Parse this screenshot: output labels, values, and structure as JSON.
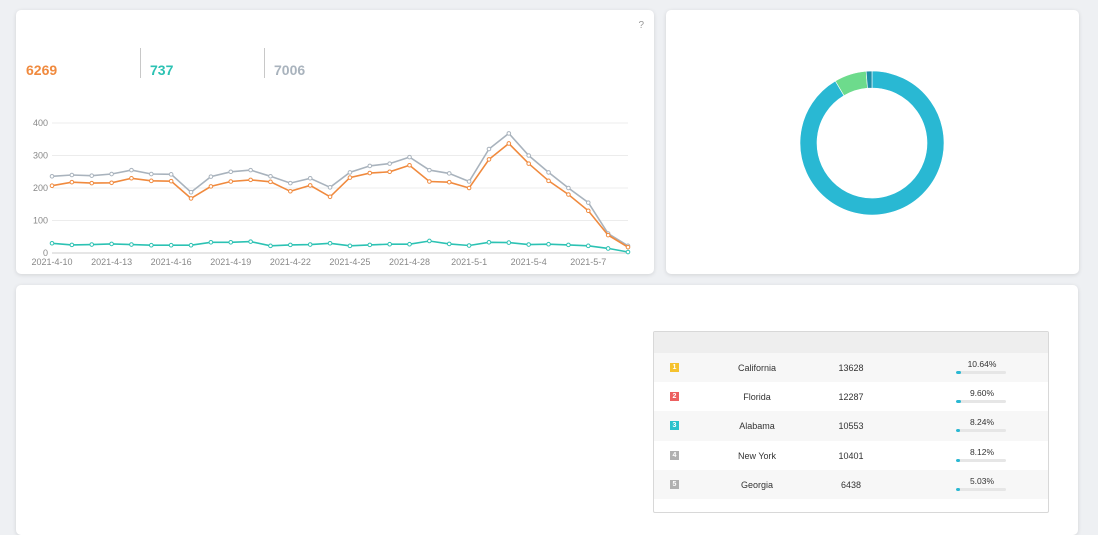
{
  "trend_panel": {
    "corner_mark": "?",
    "stats": [
      {
        "value": "6269",
        "color": "#f08a3e"
      },
      {
        "value": "737",
        "color": "#2cc2b3"
      },
      {
        "value": "7006",
        "color": "#a9b3bd"
      }
    ]
  },
  "chart_data": [
    {
      "type": "line",
      "x": [
        "2021-4-10",
        "2021-4-11",
        "2021-4-12",
        "2021-4-13",
        "2021-4-14",
        "2021-4-15",
        "2021-4-16",
        "2021-4-17",
        "2021-4-18",
        "2021-4-19",
        "2021-4-20",
        "2021-4-21",
        "2021-4-22",
        "2021-4-23",
        "2021-4-24",
        "2021-4-25",
        "2021-4-26",
        "2021-4-27",
        "2021-4-28",
        "2021-4-29",
        "2021-4-30",
        "2021-5-1",
        "2021-5-2",
        "2021-5-3",
        "2021-5-4",
        "2021-5-5",
        "2021-5-6",
        "2021-5-7",
        "2021-5-8",
        "2021-5-9"
      ],
      "xticks": [
        "2021-4-10",
        "2021-4-13",
        "2021-4-16",
        "2021-4-19",
        "2021-4-22",
        "2021-4-25",
        "2021-4-28",
        "2021-5-1",
        "2021-5-4",
        "2021-5-7"
      ],
      "yticks": [
        0,
        100,
        200,
        300,
        400
      ],
      "ylim": [
        0,
        400
      ],
      "grid": true,
      "series": [
        {
          "color": "#a9b3bd",
          "values": [
            236,
            240,
            238,
            243,
            255,
            243,
            242,
            187,
            235,
            250,
            255,
            236,
            215,
            230,
            202,
            248,
            268,
            275,
            295,
            255,
            245,
            220,
            320,
            368,
            300,
            248,
            200,
            155,
            60,
            22
          ]
        },
        {
          "color": "#f08a3e",
          "values": [
            207,
            218,
            215,
            216,
            230,
            222,
            221,
            168,
            205,
            220,
            225,
            219,
            190,
            208,
            173,
            232,
            246,
            250,
            270,
            220,
            218,
            200,
            288,
            337,
            275,
            222,
            180,
            130,
            55,
            18
          ]
        },
        {
          "color": "#2cc2b3",
          "values": [
            30,
            25,
            26,
            28,
            26,
            24,
            24,
            24,
            33,
            33,
            35,
            22,
            25,
            26,
            30,
            22,
            25,
            27,
            27,
            37,
            28,
            23,
            33,
            32,
            26,
            27,
            25,
            22,
            14,
            3
          ]
        }
      ]
    },
    {
      "type": "pie",
      "donut": true,
      "slices": [
        {
          "value": 91.5,
          "color": "#29b8d3"
        },
        {
          "value": 7.2,
          "color": "#6ddb8c"
        },
        {
          "value": 1.3,
          "color": "#1e8fa8"
        }
      ]
    }
  ],
  "ranking": {
    "rows": [
      {
        "rank": "1",
        "badge_color": "#f5c22e",
        "name": "California",
        "value": "13628",
        "percent": "10.64%",
        "fraction": 0.1064
      },
      {
        "rank": "2",
        "badge_color": "#ec6060",
        "name": "Florida",
        "value": "12287",
        "percent": "9.60%",
        "fraction": 0.096
      },
      {
        "rank": "3",
        "badge_color": "#2bc2cc",
        "name": "Alabama",
        "value": "10553",
        "percent": "8.24%",
        "fraction": 0.0824
      },
      {
        "rank": "4",
        "badge_color": "#b0b0b0",
        "name": "New York",
        "value": "10401",
        "percent": "8.12%",
        "fraction": 0.0812
      },
      {
        "rank": "5",
        "badge_color": "#b0b0b0",
        "name": "Georgia",
        "value": "6438",
        "percent": "5.03%",
        "fraction": 0.0503
      }
    ]
  }
}
